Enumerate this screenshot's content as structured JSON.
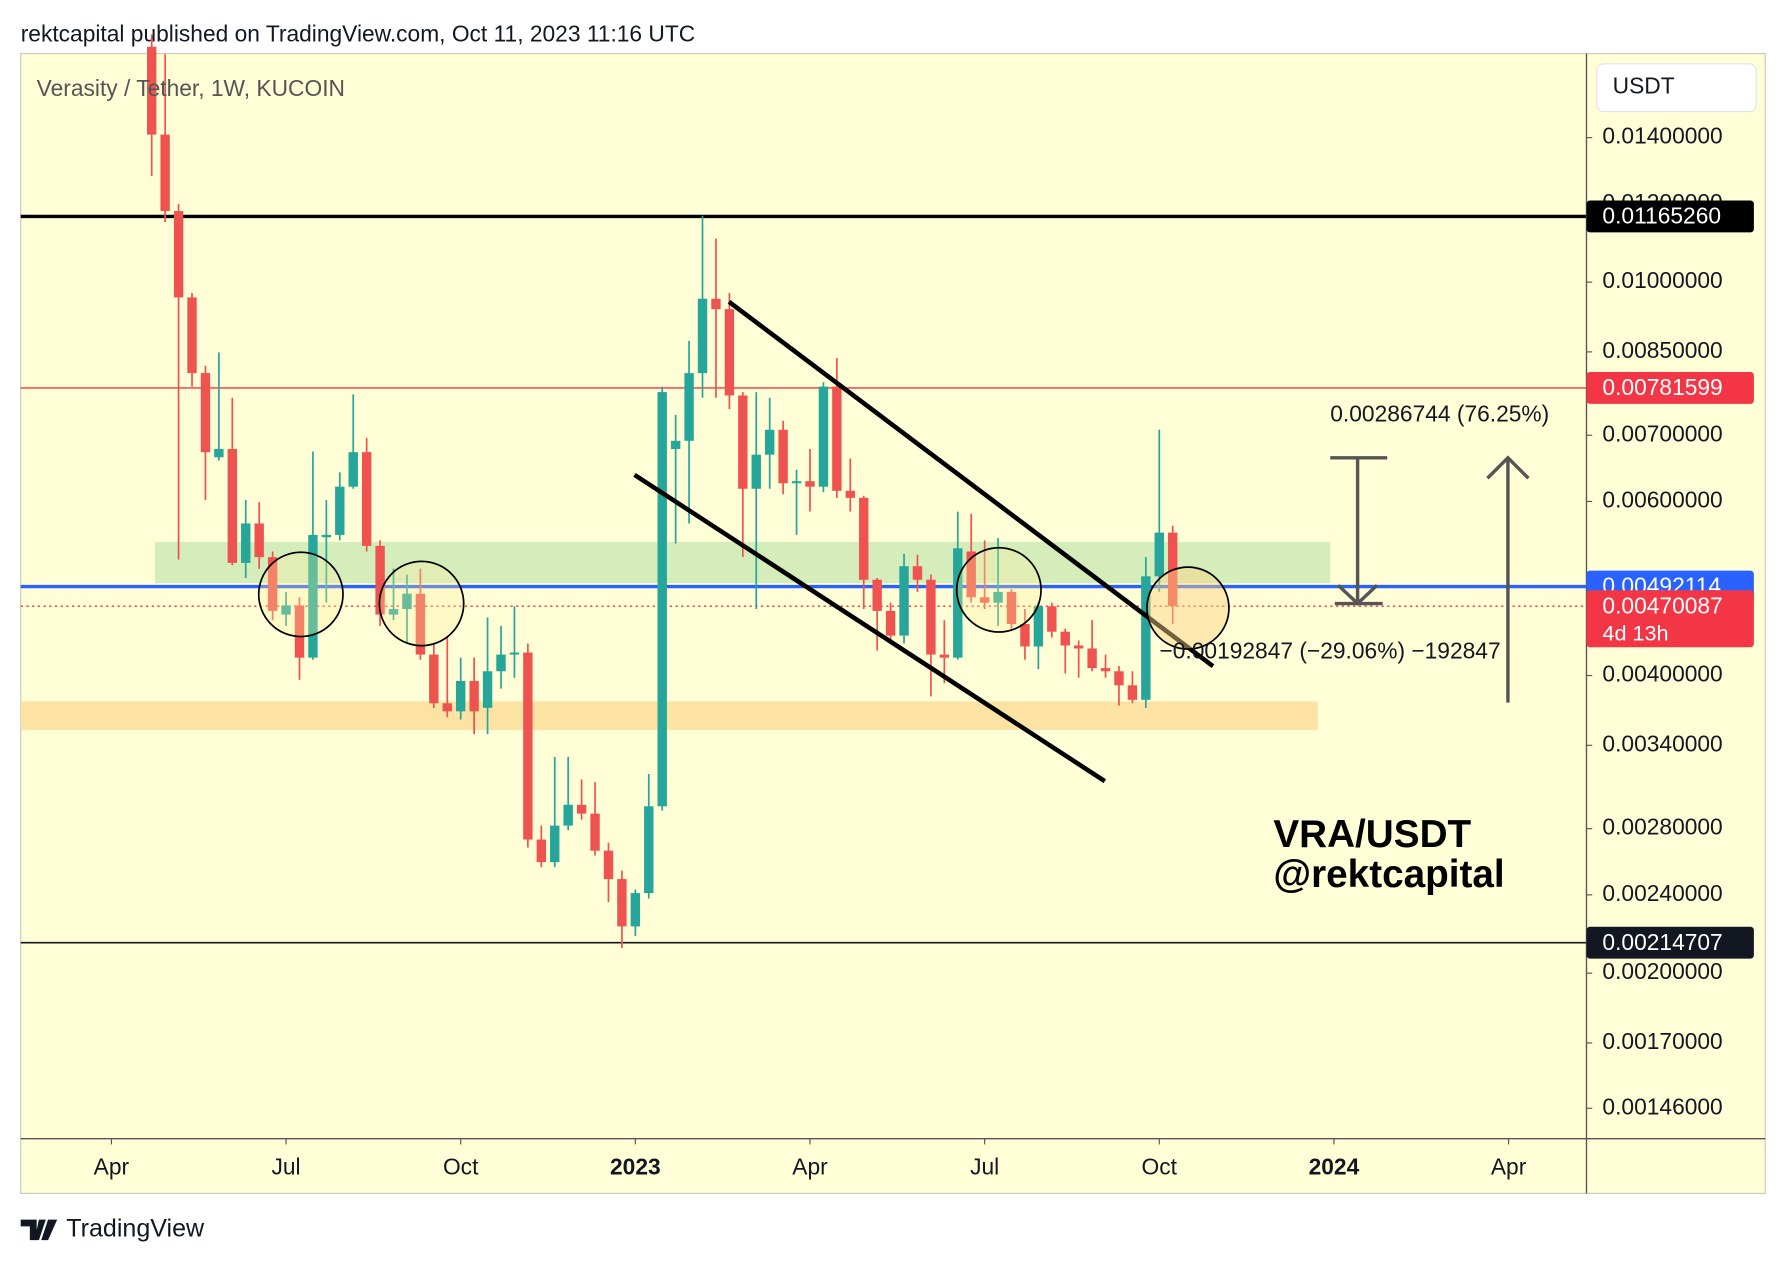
{
  "header": "rektcapital published on TradingView.com, Oct 11, 2023 11:16 UTC",
  "footer": "TradingView",
  "chart_data": {
    "type": "candlestick",
    "title": "Verasity / Tether, 1W, KUCOIN",
    "currency": "USDT",
    "log_scale": true,
    "up_color": "#26a69a",
    "down_color": "#ef5350",
    "xlim": [
      -9.75,
      106.8
    ],
    "xticks": [
      {
        "value": -3,
        "label": "Apr"
      },
      {
        "value": 10,
        "label": "Jul"
      },
      {
        "value": 23,
        "label": "Oct"
      },
      {
        "value": 36,
        "label": "2023"
      },
      {
        "value": 49,
        "label": "Apr"
      },
      {
        "value": 62,
        "label": "Jul"
      },
      {
        "value": 75,
        "label": "Oct"
      },
      {
        "value": 88,
        "label": "2024"
      },
      {
        "value": 101,
        "label": "Apr"
      }
    ],
    "ylim": [
      0.00136,
      0.01703
    ],
    "yticks": [
      {
        "value": 0.014,
        "label": "0.01400000"
      },
      {
        "value": 0.012,
        "label": "0.01200000"
      },
      {
        "value": 0.01,
        "label": "0.01000000"
      },
      {
        "value": 0.0085,
        "label": "0.00850000"
      },
      {
        "value": 0.007,
        "label": "0.00700000"
      },
      {
        "value": 0.006,
        "label": "0.00600000"
      },
      {
        "value": 0.004,
        "label": "0.00400000"
      },
      {
        "value": 0.0034,
        "label": "0.00340000"
      },
      {
        "value": 0.0028,
        "label": "0.00280000"
      },
      {
        "value": 0.0024,
        "label": "0.00240000"
      },
      {
        "value": 0.002,
        "label": "0.00200000"
      },
      {
        "value": 0.0017,
        "label": "0.00170000"
      },
      {
        "value": 0.00146,
        "label": "0.00146000"
      }
    ],
    "open": [
      0.0173,
      0.0141,
      0.0118,
      0.00965,
      0.00809,
      0.00665,
      0.00678,
      0.0052,
      0.0057,
      0.00527,
      0.00461,
      0.00471,
      0.00417,
      0.00552,
      0.00555,
      0.00621,
      0.00673,
      0.00541,
      0.00461,
      0.00467,
      0.00484,
      0.0042,
      0.00375,
      0.00368,
      0.00395,
      0.00371,
      0.00404,
      0.0042,
      0.00422,
      0.00273,
      0.00259,
      0.00282,
      0.00296,
      0.0029,
      0.00266,
      0.00249,
      0.00223,
      0.00241,
      0.00295,
      0.00678,
      0.00691,
      0.00809,
      0.00962,
      0.00939,
      0.00768,
      0.00618,
      0.00669,
      0.00709,
      0.00626,
      0.00629,
      0.00621,
      0.00784,
      0.00615,
      0.00605,
      0.005,
      0.00465,
      0.00439,
      0.00516,
      0.005,
      0.0042,
      0.00417,
      0.00534,
      0.0048,
      0.00474,
      0.00486,
      0.00451,
      0.00428,
      0.0047,
      0.00443,
      0.00429,
      0.00426,
      0.00407,
      0.00404,
      0.00391,
      0.00378,
      0.00504,
      0.00558
    ],
    "high": [
      0.0178,
      0.017,
      0.012,
      0.00975,
      0.00823,
      0.00849,
      0.00764,
      0.00602,
      0.00599,
      0.00534,
      0.00486,
      0.0048,
      0.00674,
      0.00602,
      0.00642,
      0.0077,
      0.00696,
      0.00548,
      0.00513,
      0.00506,
      0.00513,
      0.00431,
      0.00437,
      0.00417,
      0.00417,
      0.00458,
      0.00449,
      0.0047,
      0.00431,
      0.00282,
      0.00331,
      0.00331,
      0.00314,
      0.00312,
      0.00271,
      0.00254,
      0.00243,
      0.00318,
      0.00784,
      0.00734,
      0.00872,
      0.01167,
      0.01107,
      0.00975,
      0.00774,
      0.00774,
      0.00764,
      0.00724,
      0.00646,
      0.00678,
      0.00792,
      0.00838,
      0.00663,
      0.00608,
      0.00502,
      0.00474,
      0.00531,
      0.0053,
      0.00506,
      0.00455,
      0.00586,
      0.00583,
      0.00548,
      0.00551,
      0.00489,
      0.00467,
      0.00474,
      0.00474,
      0.00446,
      0.00434,
      0.00455,
      0.0042,
      0.00409,
      0.00404,
      0.00527,
      0.00709,
      0.00567
    ],
    "low": [
      0.0128,
      0.0115,
      0.00524,
      0.00784,
      0.00602,
      0.0066,
      0.00517,
      0.00502,
      0.00513,
      0.00455,
      0.00449,
      0.00396,
      0.00415,
      0.00474,
      0.00548,
      0.00618,
      0.00534,
      0.00449,
      0.00455,
      0.00431,
      0.00415,
      0.00371,
      0.00363,
      0.00361,
      0.00349,
      0.00349,
      0.00388,
      0.00398,
      0.00268,
      0.00256,
      0.00256,
      0.00279,
      0.00286,
      0.00263,
      0.00236,
      0.00212,
      0.00218,
      0.00238,
      0.00292,
      0.00544,
      0.0057,
      0.00764,
      0.00764,
      0.00744,
      0.00527,
      0.00467,
      0.00618,
      0.0061,
      0.00555,
      0.00586,
      0.00613,
      0.00605,
      0.00586,
      0.00467,
      0.00424,
      0.00435,
      0.00431,
      0.00486,
      0.00381,
      0.00393,
      0.00415,
      0.00474,
      0.00467,
      0.00449,
      0.00446,
      0.00415,
      0.00406,
      0.00437,
      0.00402,
      0.00398,
      0.00404,
      0.00398,
      0.00373,
      0.00375,
      0.00371,
      0.00486,
      0.00451
    ],
    "close": [
      0.0141,
      0.0118,
      0.00965,
      0.00809,
      0.00673,
      0.00678,
      0.0052,
      0.0057,
      0.00527,
      0.00465,
      0.00471,
      0.00417,
      0.00555,
      0.00555,
      0.00621,
      0.00673,
      0.00541,
      0.00461,
      0.00467,
      0.00484,
      0.0042,
      0.00375,
      0.00368,
      0.00395,
      0.00368,
      0.00404,
      0.0042,
      0.00422,
      0.00273,
      0.00259,
      0.00282,
      0.00296,
      0.0029,
      0.00266,
      0.00249,
      0.00223,
      0.00241,
      0.00295,
      0.00774,
      0.00691,
      0.00809,
      0.00962,
      0.00939,
      0.00768,
      0.00618,
      0.00669,
      0.00709,
      0.00626,
      0.00629,
      0.00621,
      0.00784,
      0.00615,
      0.00605,
      0.005,
      0.00465,
      0.00439,
      0.00516,
      0.005,
      0.0042,
      0.00417,
      0.00538,
      0.0048,
      0.00474,
      0.00486,
      0.00451,
      0.00428,
      0.0047,
      0.00443,
      0.00429,
      0.00426,
      0.00407,
      0.00404,
      0.00391,
      0.00378,
      0.00504,
      0.00558,
      0.00470087
    ],
    "price_lines": [
      {
        "value": 0.0116526,
        "label": "0.01165260",
        "color": "#000000",
        "width": 3,
        "style": "solid"
      },
      {
        "value": 0.00781599,
        "label": "0.00781599",
        "color": "#f23645",
        "width": 1.2,
        "style": "solid"
      },
      {
        "value": 0.00492114,
        "label": "0.00492114",
        "color": "#2962ff",
        "width": 3,
        "style": "solid"
      },
      {
        "value": 0.00470087,
        "label": "0.00470087",
        "color": "#f23645",
        "width": 1.2,
        "style": "dotted",
        "countdown": "4d 13h"
      },
      {
        "value": 0.00214707,
        "label": "0.00214707",
        "color": "#131722",
        "width": 1.5,
        "style": "solid"
      }
    ],
    "annotations": [
      "0.00286744 (76.25%)",
      "−0.00192847 (−29.06%) −192847",
      "VRA/USDT",
      "@rektcapital"
    ]
  }
}
